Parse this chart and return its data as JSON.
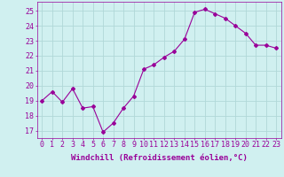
{
  "x": [
    0,
    1,
    2,
    3,
    4,
    5,
    6,
    7,
    8,
    9,
    10,
    11,
    12,
    13,
    14,
    15,
    16,
    17,
    18,
    19,
    20,
    21,
    22,
    23
  ],
  "y": [
    19.0,
    19.6,
    18.9,
    19.8,
    18.5,
    18.6,
    16.9,
    17.5,
    18.5,
    19.3,
    21.1,
    21.4,
    21.9,
    22.3,
    23.1,
    24.9,
    25.1,
    24.8,
    24.5,
    24.0,
    23.5,
    22.7,
    22.7,
    22.5
  ],
  "line_color": "#990099",
  "marker": "D",
  "marker_size": 2,
  "bg_color": "#d0f0f0",
  "grid_color": "#b0d8d8",
  "xlabel": "Windchill (Refroidissement éolien,°C)",
  "xlabel_color": "#990099",
  "xlabel_fontsize": 6.5,
  "tick_color": "#990099",
  "tick_fontsize": 6,
  "ylim": [
    16.5,
    25.6
  ],
  "yticks": [
    17,
    18,
    19,
    20,
    21,
    22,
    23,
    24,
    25
  ],
  "xticks": [
    0,
    1,
    2,
    3,
    4,
    5,
    6,
    7,
    8,
    9,
    10,
    11,
    12,
    13,
    14,
    15,
    16,
    17,
    18,
    19,
    20,
    21,
    22,
    23
  ],
  "spine_color": "#990099",
  "xlim": [
    -0.5,
    23.5
  ]
}
